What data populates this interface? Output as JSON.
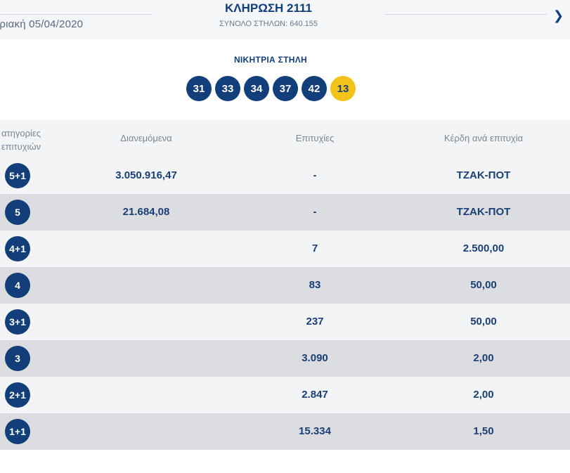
{
  "header": {
    "date": "υριακή 05/04/2020",
    "draw_title": "ΚΛΗΡΩΣΗ 2111",
    "total_columns": "ΣΥΝΟΛΟ ΣΤΗΛΩΝ: 640.155",
    "next_icon": "chevron-right-icon"
  },
  "winning": {
    "label": "ΝΙΚΗΤΡΙΑ ΣΤΗΛΗ",
    "numbers": [
      "31",
      "33",
      "34",
      "37",
      "42"
    ],
    "joker": "13",
    "colors": {
      "number": "#123f7a",
      "joker": "#f3c31b"
    }
  },
  "table": {
    "headers": {
      "category_line1": "ατηγορίες",
      "category_line2": "επιτυχιών",
      "distributed": "Διανεμόμενα",
      "successes": "Επιτυχίες",
      "prize": "Κέρδη ανά επιτυχία"
    },
    "rows": [
      {
        "category": "5+1",
        "distributed": "3.050.916,47",
        "successes": "-",
        "prize": "ΤΖΑΚ-ΠΟΤ"
      },
      {
        "category": "5",
        "distributed": "21.684,08",
        "successes": "-",
        "prize": "ΤΖΑΚ-ΠΟΤ"
      },
      {
        "category": "4+1",
        "distributed": "",
        "successes": "7",
        "prize": "2.500,00"
      },
      {
        "category": "4",
        "distributed": "",
        "successes": "83",
        "prize": "50,00"
      },
      {
        "category": "3+1",
        "distributed": "",
        "successes": "237",
        "prize": "50,00"
      },
      {
        "category": "3",
        "distributed": "",
        "successes": "3.090",
        "prize": "2,00"
      },
      {
        "category": "2+1",
        "distributed": "",
        "successes": "2.847",
        "prize": "2,00"
      },
      {
        "category": "1+1",
        "distributed": "",
        "successes": "15.334",
        "prize": "1,50"
      }
    ]
  }
}
